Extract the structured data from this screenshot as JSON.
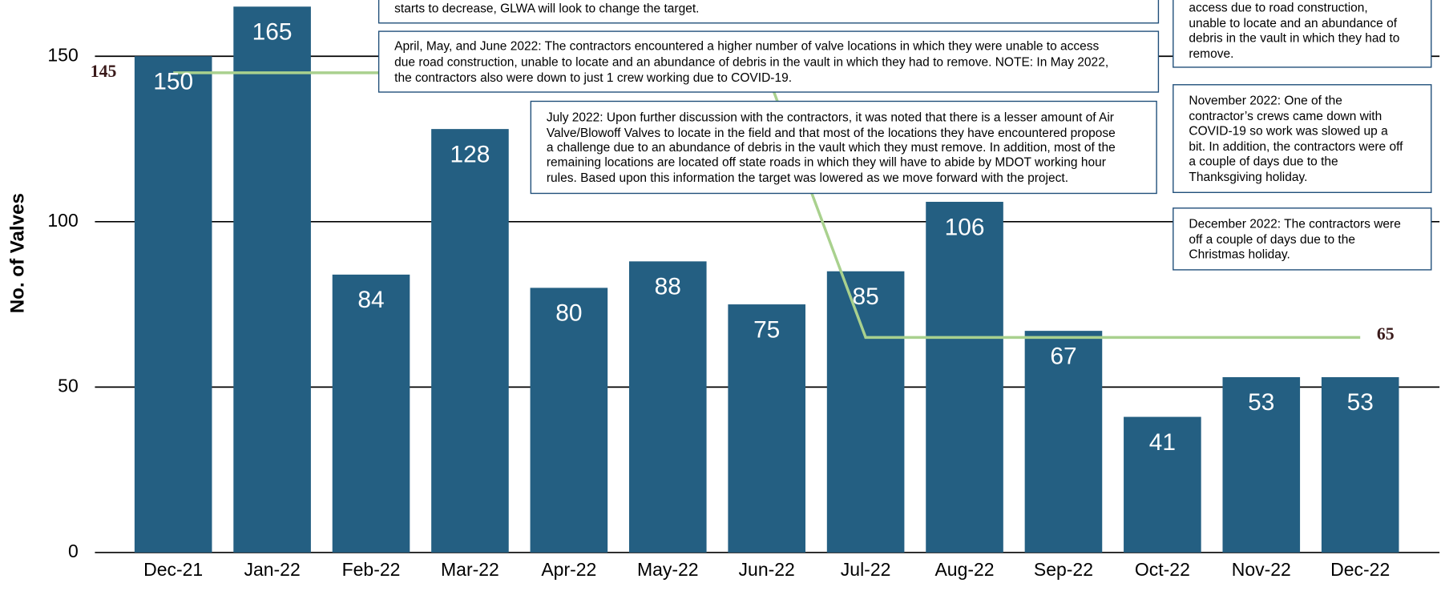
{
  "chart_data": {
    "type": "bar",
    "y_axis_label": "No. of Valves",
    "categories": [
      "Dec-21",
      "Jan-22",
      "Feb-22",
      "Mar-22",
      "Apr-22",
      "May-22",
      "Jun-22",
      "Jul-22",
      "Aug-22",
      "Sep-22",
      "Oct-22",
      "Nov-22",
      "Dec-22"
    ],
    "values": [
      150,
      165,
      84,
      128,
      80,
      88,
      75,
      85,
      106,
      67,
      41,
      53,
      53
    ],
    "color": "#245f82",
    "target": {
      "values": [
        145,
        145,
        145,
        145,
        145,
        145,
        145,
        65,
        65,
        65,
        65,
        65,
        65
      ],
      "color": "#a9d18e"
    },
    "ylim": [
      0,
      167
    ],
    "yticks": [
      0,
      50,
      100,
      150
    ],
    "grid": true,
    "annotations": [
      {
        "lines": [
          "starts to decrease, GLWA will look to change the target."
        ]
      },
      {
        "lines": [
          "April, May, and June 2022: The contractors encountered a higher number of valve locations in which they were unable to access",
          "due road construction, unable to locate and an abundance of debris in the vault in which they had to remove. NOTE: In May 2022,",
          "the contractors also were down to just 1 crew working due to COVID-19."
        ]
      },
      {
        "lines": [
          "July 2022:  Upon further discussion with the contractors, it was noted that there is a lesser amount of Air",
          "Valve/Blowoff Valves to locate in the field and that most of the locations they have encountered propose",
          "a challenge due to an abundance of debris in the vault which they must remove. In addition, most of the",
          "remaining locations are located off state roads in which they will have to abide by MDOT working hour",
          "rules. Based upon this information the target was lowered as we move forward with the project."
        ]
      },
      {
        "lines": [
          "access due to road construction,",
          "unable to locate and an abundance of",
          "debris in the vault in which they had to",
          "remove."
        ]
      },
      {
        "lines": [
          "November 2022:  One of the",
          "contractor’s crews came down with",
          "COVID-19 so work was slowed up a",
          "bit. In addition, the contractors were off",
          "a couple of days due to the",
          "Thanksgiving holiday."
        ]
      },
      {
        "lines": [
          "December 2022:  The contractors were",
          "off a couple of days due to the",
          "Christmas holiday."
        ]
      }
    ]
  }
}
